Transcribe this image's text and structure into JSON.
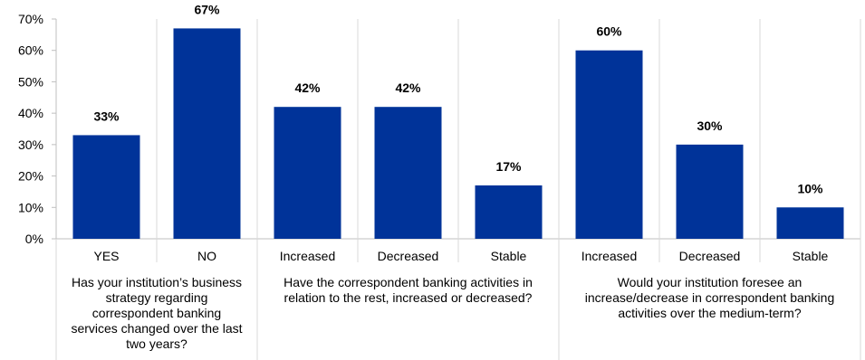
{
  "chart_data": {
    "type": "bar",
    "title": "",
    "ylabel": "",
    "ylim": [
      0,
      70
    ],
    "yticks": [
      "0%",
      "10%",
      "20%",
      "30%",
      "40%",
      "50%",
      "60%",
      "70%"
    ],
    "value_format": "percent",
    "bar_color": "#003399",
    "gridlines": "vertical group separators only",
    "categories": [
      "YES",
      "NO",
      "Increased",
      "Decreased",
      "Stable",
      "Increased",
      "Decreased",
      "Stable"
    ],
    "values": [
      33,
      67,
      42,
      42,
      17,
      60,
      30,
      10
    ],
    "data_labels": [
      "33%",
      "67%",
      "42%",
      "42%",
      "17%",
      "60%",
      "30%",
      "10%"
    ],
    "groups": [
      {
        "label": "Has your institution’s business strategy regarding correspondent banking services changed over the last two years?",
        "lines": [
          "Has your institution’s business",
          "strategy regarding",
          "correspondent banking",
          "services changed over the last",
          "two years?"
        ],
        "count": 2
      },
      {
        "label": "Have the correspondent banking activities in relation to the rest, increased or decreased?",
        "lines": [
          "Have the correspondent banking activities in",
          "relation to the rest, increased or decreased?"
        ],
        "count": 3
      },
      {
        "label": "Would your institution foresee an increase/decrease in correspondent banking activities over the medium-term?",
        "lines": [
          "Would your institution foresee an",
          "increase/decrease in correspondent banking",
          "activities over the medium-term?"
        ],
        "count": 3
      }
    ]
  }
}
